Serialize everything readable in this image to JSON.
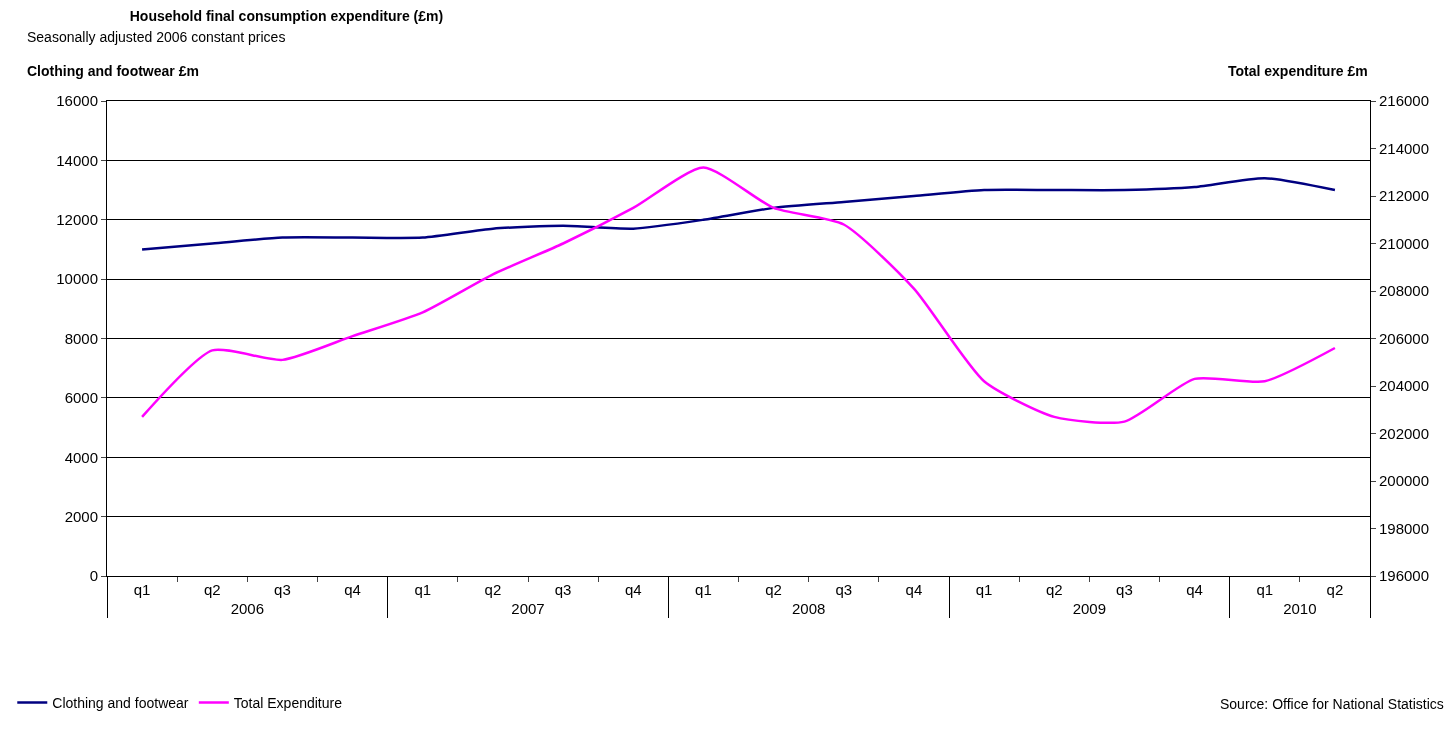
{
  "chart_data": {
    "type": "line",
    "title": "Household final consumption expenditure (£m)",
    "subtitle": "Seasonally adjusted 2006 constant prices",
    "ylabel": "Clothing and footwear £m",
    "y2label": "Total expenditure £m",
    "categories": [
      [
        "2006",
        "q1"
      ],
      [
        null,
        "q2"
      ],
      [
        null,
        "q3"
      ],
      [
        null,
        "q4"
      ],
      [
        "2007",
        "q1"
      ],
      [
        null,
        "q2"
      ],
      [
        null,
        "q3"
      ],
      [
        null,
        "q4"
      ],
      [
        "2008",
        "q1"
      ],
      [
        null,
        "q2"
      ],
      [
        null,
        "q3"
      ],
      [
        null,
        "q4"
      ],
      [
        "2009",
        "q1"
      ],
      [
        null,
        "q2"
      ],
      [
        null,
        "q3"
      ],
      [
        null,
        "q4"
      ],
      [
        "2010",
        "q1"
      ],
      [
        null,
        "q2"
      ]
    ],
    "series": [
      {
        "name": "Clothing and footwear",
        "color": "#000080",
        "values": [
          11000,
          11200,
          11400,
          11400,
          11400,
          11700,
          11800,
          11700,
          12000,
          12400,
          12600,
          12800,
          13000,
          13000,
          13000,
          13100,
          13400,
          13000
        ]
      },
      {
        "name": "Total Expenditure",
        "color": "#ff00ff",
        "axis": "y2",
        "values": [
          202700,
          205500,
          205100,
          206100,
          207100,
          208700,
          210000,
          211500,
          213200,
          211500,
          210800,
          208100,
          204200,
          202700,
          202500,
          204300,
          204200,
          205600
        ]
      }
    ],
    "ylim": [
      0,
      16000
    ],
    "yticks": [
      0,
      2000,
      4000,
      6000,
      8000,
      10000,
      12000,
      14000,
      16000
    ],
    "y2lim": [
      196000,
      216000
    ],
    "y2ticks": [
      196000,
      198000,
      200000,
      202000,
      204000,
      206000,
      208000,
      210000,
      212000,
      214000,
      216000
    ],
    "grid": "y",
    "legend": "bottom left",
    "marker": "none",
    "line_style": "solid",
    "annotations": [
      "Source: Office for National Statistics"
    ]
  }
}
